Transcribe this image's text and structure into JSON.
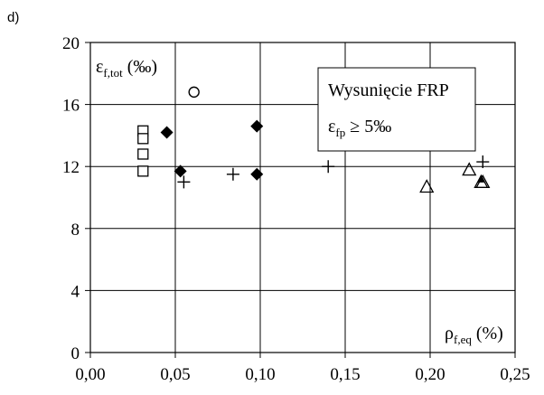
{
  "chart_data": {
    "type": "scatter",
    "panel_label": "d)",
    "ylabel": {
      "main": "ε",
      "sub": "f,tot",
      "unit": " (‰)"
    },
    "xlabel": {
      "main": "ρ",
      "sub": "f,eq",
      "unit": " (%)"
    },
    "xlim": [
      0,
      0.25
    ],
    "ylim": [
      0,
      20
    ],
    "x_ticks": [
      0,
      0.05,
      0.1,
      0.15,
      0.2,
      0.25
    ],
    "x_tick_labels": [
      "0,00",
      "0,05",
      "0,10",
      "0,15",
      "0,20",
      "0,25"
    ],
    "y_ticks": [
      0,
      4,
      8,
      12,
      16,
      20
    ],
    "y_tick_labels": [
      "0",
      "4",
      "8",
      "12",
      "16",
      "20"
    ],
    "grid": true,
    "annotation": {
      "line1": "Wysunięcie FRP",
      "line2_main": "ε",
      "line2_sub": "fp",
      "line2_rest": " ≥ 5‰"
    },
    "series": [
      {
        "marker": "square",
        "x": [
          0.031,
          0.031,
          0.031,
          0.031
        ],
        "y": [
          14.3,
          13.8,
          12.8,
          11.7
        ]
      },
      {
        "marker": "diamond",
        "x": [
          0.045,
          0.053,
          0.098,
          0.098
        ],
        "y": [
          14.2,
          11.7,
          14.6,
          11.5
        ]
      },
      {
        "marker": "circle",
        "x": [
          0.061
        ],
        "y": [
          16.8
        ]
      },
      {
        "marker": "plus",
        "x": [
          0.055,
          0.084,
          0.14,
          0.231
        ],
        "y": [
          11.0,
          11.5,
          12.0,
          12.3
        ]
      },
      {
        "marker": "triangle",
        "x": [
          0.198,
          0.223,
          0.23,
          0.231
        ],
        "y": [
          10.7,
          11.8,
          11.0,
          11.0
        ]
      },
      {
        "marker": "triangle-filled",
        "x": [
          0.23
        ],
        "y": [
          11.2
        ]
      }
    ]
  }
}
